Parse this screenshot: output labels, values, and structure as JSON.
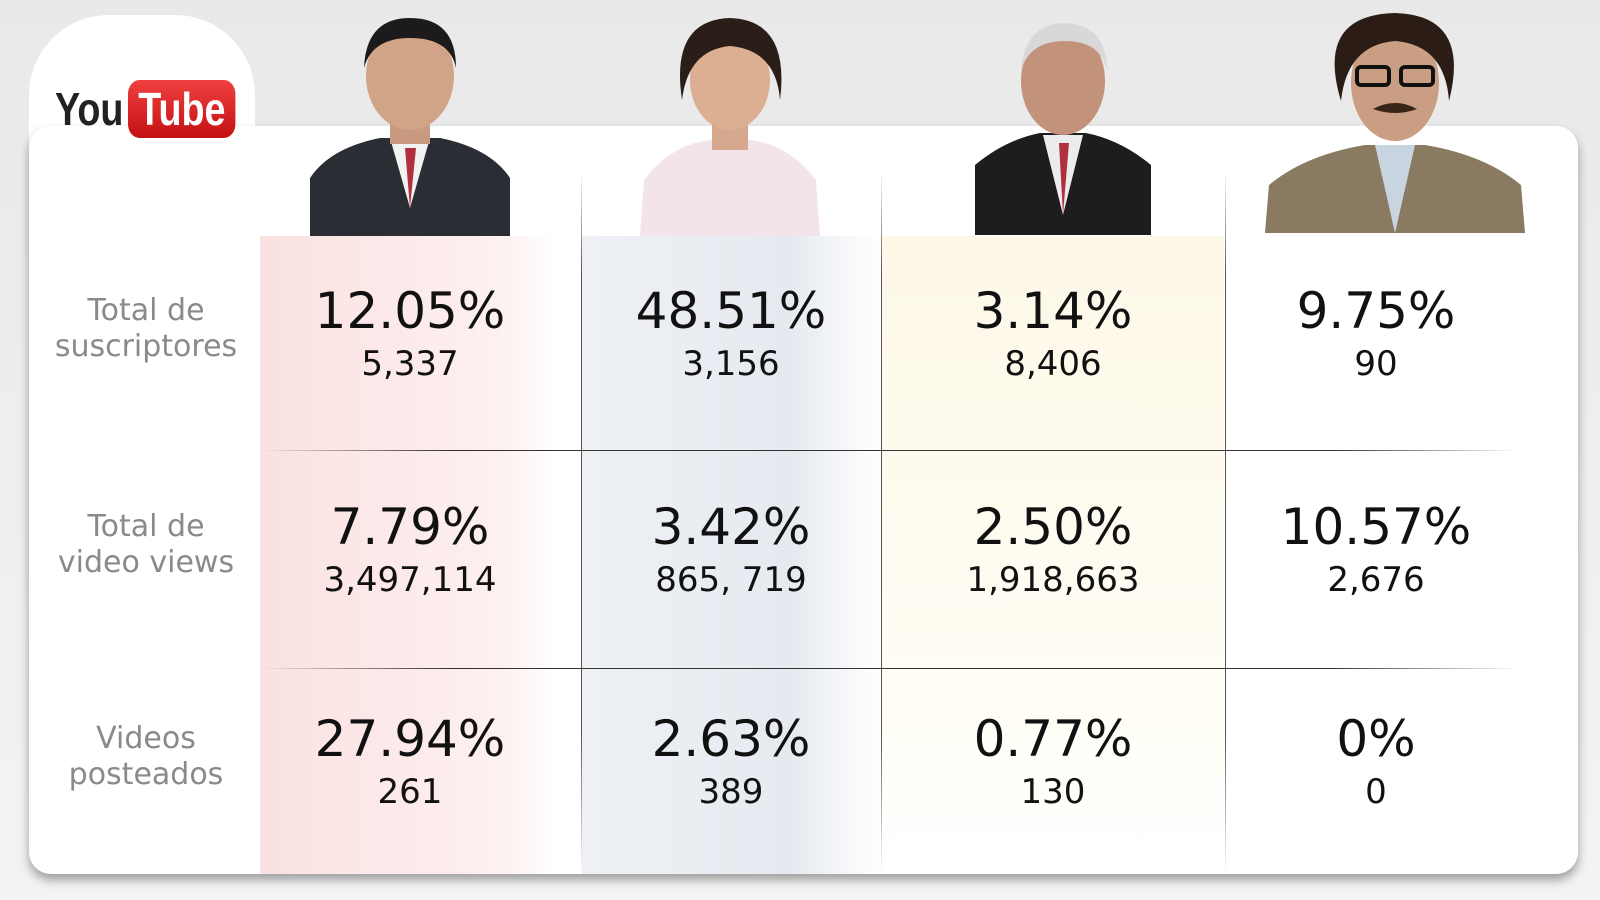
{
  "logo": {
    "you": "You",
    "tube": "Tube"
  },
  "table": {
    "rows": [
      {
        "label": [
          "Total de",
          "suscriptores"
        ],
        "cells": [
          {
            "percent": "12.05%",
            "count": "5,337"
          },
          {
            "percent": "48.51%",
            "count": "3,156"
          },
          {
            "percent": "3.14%",
            "count": "8,406"
          },
          {
            "percent": "9.75%",
            "count": "90"
          }
        ]
      },
      {
        "label": [
          "Total de",
          "video views"
        ],
        "cells": [
          {
            "percent": "7.79%",
            "count": "3,497,114"
          },
          {
            "percent": "3.42%",
            "count": "865, 719"
          },
          {
            "percent": "2.50%",
            "count": "1,918,663"
          },
          {
            "percent": "10.57%",
            "count": "2,676"
          }
        ]
      },
      {
        "label": [
          "Videos",
          "posteados"
        ],
        "cells": [
          {
            "percent": "27.94%",
            "count": "261"
          },
          {
            "percent": "2.63%",
            "count": "389"
          },
          {
            "percent": "0.77%",
            "count": "130"
          },
          {
            "percent": "0%",
            "count": "0"
          }
        ]
      }
    ]
  }
}
